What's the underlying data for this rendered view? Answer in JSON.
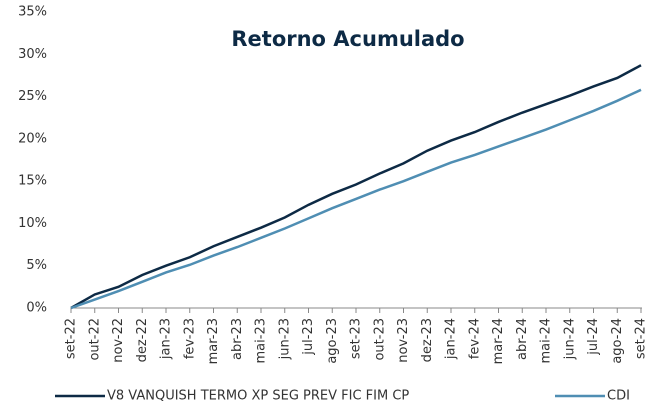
{
  "chart_data": {
    "type": "line",
    "title": "Retorno Acumulado",
    "categories": [
      "set-22",
      "out-22",
      "nov-22",
      "dez-22",
      "jan-23",
      "fev-23",
      "mar-23",
      "abr-23",
      "mai-23",
      "jun-23",
      "jul-23",
      "ago-23",
      "set-23",
      "out-23",
      "nov-23",
      "dez-23",
      "jan-24",
      "fev-24",
      "mar-24",
      "abr-24",
      "mai-24",
      "jun-24",
      "jul-24",
      "ago-24",
      "set-24"
    ],
    "series": [
      {
        "name": "V8 VANQUISH TERMO XP SEG PREV FIC FIM CP",
        "color": "#0d2a45",
        "values": [
          0,
          1.6,
          2.5,
          3.9,
          5.0,
          6.0,
          7.3,
          8.4,
          9.5,
          10.7,
          12.2,
          13.5,
          14.6,
          15.9,
          17.1,
          18.6,
          19.8,
          20.8,
          22.0,
          23.1,
          24.1,
          25.1,
          26.2,
          27.2,
          28.7
        ]
      },
      {
        "name": "CDI",
        "color": "#4f8eb3",
        "values": [
          0,
          1.0,
          2.0,
          3.1,
          4.2,
          5.1,
          6.2,
          7.2,
          8.3,
          9.4,
          10.6,
          11.8,
          12.9,
          14.0,
          15.0,
          16.1,
          17.2,
          18.1,
          19.1,
          20.1,
          21.1,
          22.2,
          23.3,
          24.5,
          25.8
        ]
      }
    ],
    "ylim": [
      0,
      35
    ],
    "yticks": [
      {
        "value": 0,
        "label": "0%"
      },
      {
        "value": 5,
        "label": "5%"
      },
      {
        "value": 10,
        "label": "10%"
      },
      {
        "value": 15,
        "label": "15%"
      },
      {
        "value": 20,
        "label": "20%"
      },
      {
        "value": 25,
        "label": "25%"
      },
      {
        "value": 30,
        "label": "30%"
      },
      {
        "value": 35,
        "label": "35%"
      }
    ],
    "grid": false,
    "legend": "bottom"
  }
}
